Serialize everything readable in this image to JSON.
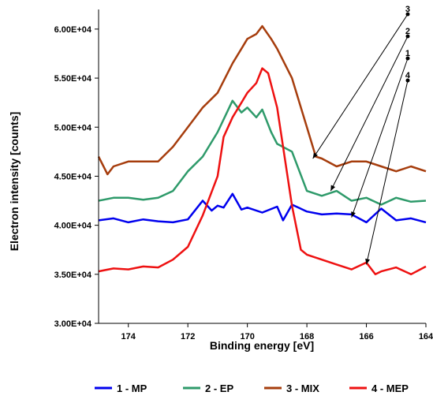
{
  "chart_data": {
    "type": "line",
    "title": "",
    "xlabel": "Binding energy [eV]",
    "ylabel": "Electron intensity [counts]",
    "xlim": [
      175,
      164
    ],
    "ylim": [
      30000,
      62000
    ],
    "x_reversed": true,
    "x_ticks": [
      174,
      172,
      170,
      168,
      166,
      164
    ],
    "x_tick_labels": [
      "174",
      "172",
      "170",
      "168",
      "166",
      "164"
    ],
    "y_ticks": [
      30000,
      35000,
      40000,
      45000,
      50000,
      55000,
      60000
    ],
    "y_tick_labels": [
      "3.00E+04",
      "3.50E+04",
      "4.00E+04",
      "4.50E+04",
      "5.00E+04",
      "5.50E+04",
      "6.00E+04"
    ],
    "grid": false,
    "legend_position": "bottom",
    "series": [
      {
        "name": "1 - MP",
        "color": "#0000ee",
        "x": [
          175,
          174.5,
          174,
          173.5,
          173,
          172.5,
          172,
          171.5,
          171.2,
          171,
          170.8,
          170.5,
          170.2,
          170,
          169.5,
          169,
          168.8,
          168.5,
          168,
          167.5,
          167,
          166.5,
          166,
          165.5,
          165,
          164.5,
          164
        ],
        "y": [
          40500,
          40700,
          40300,
          40600,
          40400,
          40300,
          40600,
          42500,
          41500,
          42000,
          41800,
          43200,
          41600,
          41800,
          41300,
          41900,
          40500,
          42100,
          41400,
          41100,
          41200,
          41100,
          40300,
          41700,
          40500,
          40700,
          40300
        ]
      },
      {
        "name": "2 - EP",
        "color": "#2e9a6a",
        "x": [
          175,
          174.5,
          174,
          173.5,
          173,
          172.5,
          172,
          171.5,
          171,
          170.5,
          170.2,
          170,
          169.7,
          169.5,
          169.2,
          169,
          168.5,
          168,
          167.5,
          167,
          166.5,
          166,
          165.5,
          165,
          164.5,
          164
        ],
        "y": [
          42500,
          42800,
          42800,
          42600,
          42800,
          43500,
          45500,
          47000,
          49500,
          52700,
          51500,
          52000,
          51000,
          51800,
          49500,
          48300,
          47500,
          43500,
          43000,
          43500,
          42500,
          42800,
          42100,
          42800,
          42400,
          42500
        ]
      },
      {
        "name": "3 - MIX",
        "color": "#a63d0d",
        "x": [
          175,
          174.7,
          174.5,
          174,
          173.5,
          173,
          172.5,
          172,
          171.5,
          171,
          170.5,
          170.2,
          170,
          169.7,
          169.5,
          169.2,
          169,
          168.5,
          168,
          167.7,
          167.5,
          167,
          166.5,
          166,
          165.5,
          165,
          164.5,
          164
        ],
        "y": [
          47000,
          45200,
          46000,
          46500,
          46500,
          46500,
          48000,
          50000,
          52000,
          53500,
          56500,
          58000,
          59000,
          59500,
          60300,
          59000,
          58000,
          55000,
          50000,
          47000,
          46800,
          46000,
          46500,
          46500,
          46000,
          45500,
          46000,
          45500
        ]
      },
      {
        "name": "4 - MEP",
        "color": "#ee1111",
        "x": [
          175,
          174.5,
          174,
          173.5,
          173,
          172.5,
          172,
          171.5,
          171,
          170.8,
          170.5,
          170.2,
          170,
          169.7,
          169.5,
          169.3,
          169,
          168.8,
          168.5,
          168.2,
          168,
          167.5,
          167,
          166.5,
          166,
          165.7,
          165.5,
          165,
          164.5,
          164
        ],
        "y": [
          35300,
          35600,
          35500,
          35800,
          35700,
          36500,
          37800,
          41000,
          45000,
          49000,
          51000,
          52500,
          53500,
          54500,
          56000,
          55500,
          52000,
          48000,
          42000,
          37500,
          37000,
          36500,
          36000,
          35500,
          36200,
          35000,
          35300,
          35700,
          35000,
          35800
        ]
      }
    ],
    "callouts": [
      {
        "label": "3",
        "target_x": 167.8,
        "target_y": 46800
      },
      {
        "label": "2",
        "target_x": 167.2,
        "target_y": 43500
      },
      {
        "label": "1",
        "target_x": 166.5,
        "target_y": 40800
      },
      {
        "label": "4",
        "target_x": 166.0,
        "target_y": 36000
      }
    ]
  }
}
